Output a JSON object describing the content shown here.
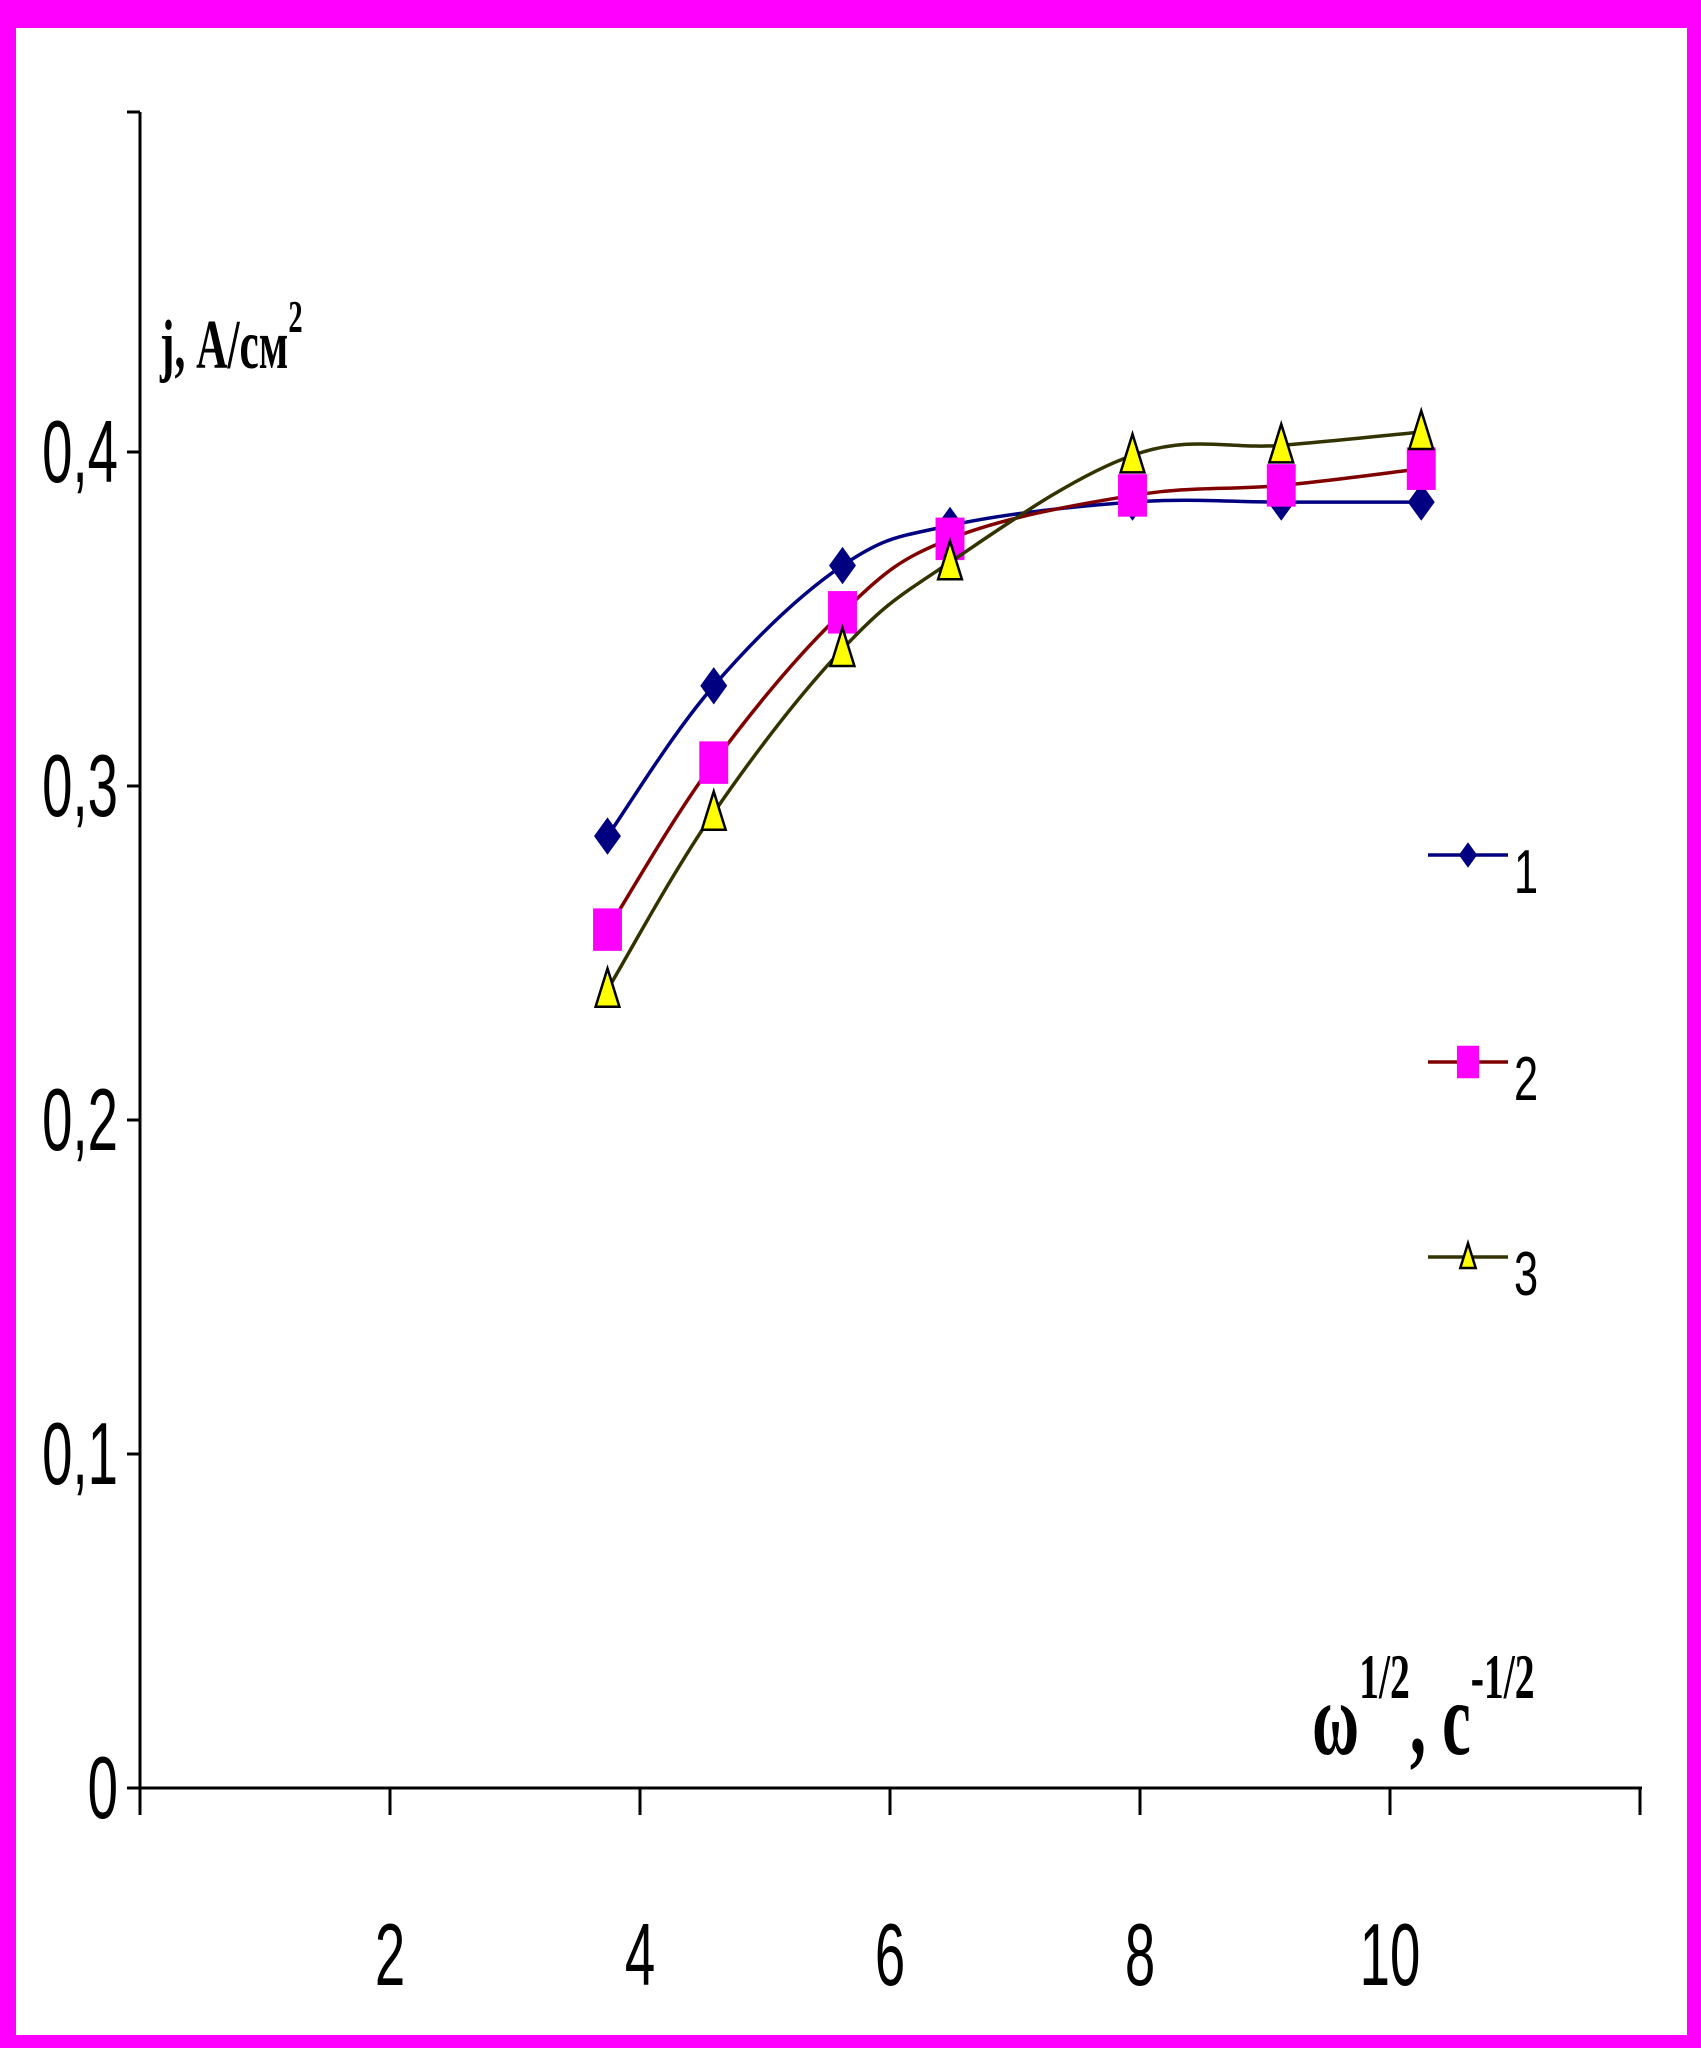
{
  "chart_data": {
    "type": "line",
    "title": "",
    "ylabel": "j, А/см",
    "ylabel_sup": "2",
    "xlabel_base": "ω",
    "xlabel_sup1": "1/2",
    "xlabel_mid": ", с",
    "xlabel_sup2": "-1/2",
    "xlim": [
      0,
      12
    ],
    "ylim": [
      0,
      0.5
    ],
    "x_ticks": [
      2,
      4,
      6,
      8,
      10
    ],
    "x_tick_labels": [
      "2",
      "4",
      "6",
      "8",
      "10"
    ],
    "y_ticks": [
      0,
      0.1,
      0.2,
      0.3,
      0.4
    ],
    "y_tick_labels": [
      "0",
      "0,1",
      "0,2",
      "0,3",
      "0,4"
    ],
    "grid": false,
    "legend_position": "right",
    "series": [
      {
        "name": "1",
        "color": "#000080",
        "marker": "diamond",
        "marker_color": "#000080",
        "x": [
          3.74,
          4.59,
          5.62,
          6.48,
          7.94,
          9.13,
          10.25
        ],
        "y": [
          0.285,
          0.33,
          0.366,
          0.378,
          0.385,
          0.385,
          0.385
        ]
      },
      {
        "name": "2",
        "color": "#800000",
        "marker": "square",
        "marker_color": "#ff00ff",
        "x": [
          3.74,
          4.59,
          5.62,
          6.48,
          7.94,
          9.13,
          10.25
        ],
        "y": [
          0.257,
          0.307,
          0.352,
          0.374,
          0.387,
          0.39,
          0.395
        ]
      },
      {
        "name": "3",
        "color": "#333300",
        "marker": "triangle",
        "marker_color": "#ffff00",
        "x": [
          3.74,
          4.59,
          5.62,
          6.48,
          7.94,
          9.13,
          10.25
        ],
        "y": [
          0.239,
          0.292,
          0.341,
          0.367,
          0.399,
          0.402,
          0.406
        ]
      }
    ]
  }
}
